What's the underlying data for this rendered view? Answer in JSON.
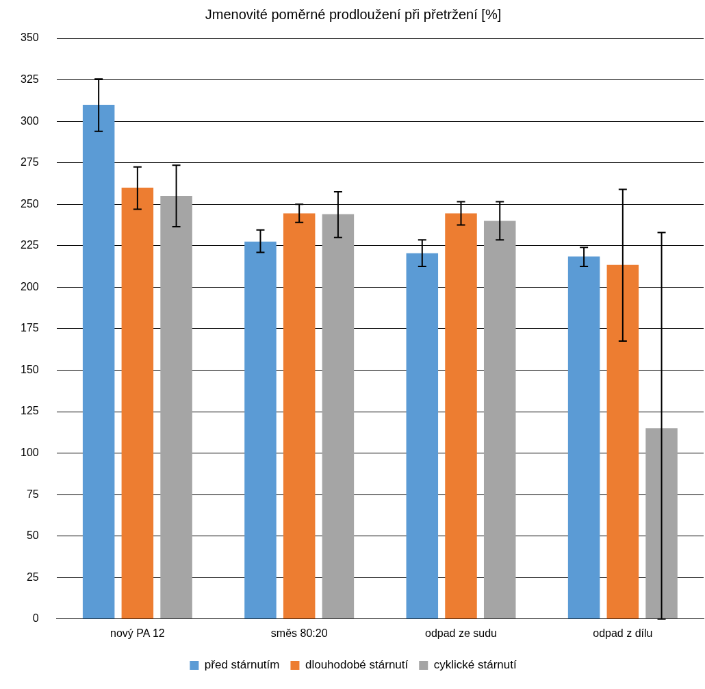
{
  "chart_data": {
    "type": "bar",
    "title": "Jmenovité poměrné prodloužení při přetržení [%]",
    "categories": [
      "nový PA 12",
      "směs 80:20",
      "odpad ze sudu",
      "odpad z dílu"
    ],
    "series": [
      {
        "name": "před stárnutím",
        "color": "#5b9bd5",
        "values": [
          310,
          227.5,
          220.5,
          218.5
        ],
        "errors": [
          [
            294,
            325.5
          ],
          [
            221,
            234.5
          ],
          [
            212.5,
            228.5
          ],
          [
            212.5,
            224
          ]
        ]
      },
      {
        "name": "dlouhodobé stárnutí",
        "color": "#ed7d31",
        "values": [
          260,
          244.5,
          244.5,
          213.5
        ],
        "errors": [
          [
            247,
            272.5
          ],
          [
            239,
            250
          ],
          [
            237.5,
            251.5
          ],
          [
            167.5,
            259
          ]
        ]
      },
      {
        "name": "cyklické stárnutí",
        "color": "#a5a5a5",
        "values": [
          255,
          244,
          240,
          115
        ],
        "errors": [
          [
            236.5,
            273.5
          ],
          [
            230,
            257.5
          ],
          [
            228.5,
            251.5
          ],
          [
            0,
            233
          ]
        ]
      }
    ],
    "ylim": [
      0,
      350
    ],
    "yticks": [
      0,
      25,
      50,
      75,
      100,
      125,
      150,
      175,
      200,
      225,
      250,
      275,
      300,
      325,
      350
    ],
    "grid": "y",
    "legend": "bottom"
  }
}
